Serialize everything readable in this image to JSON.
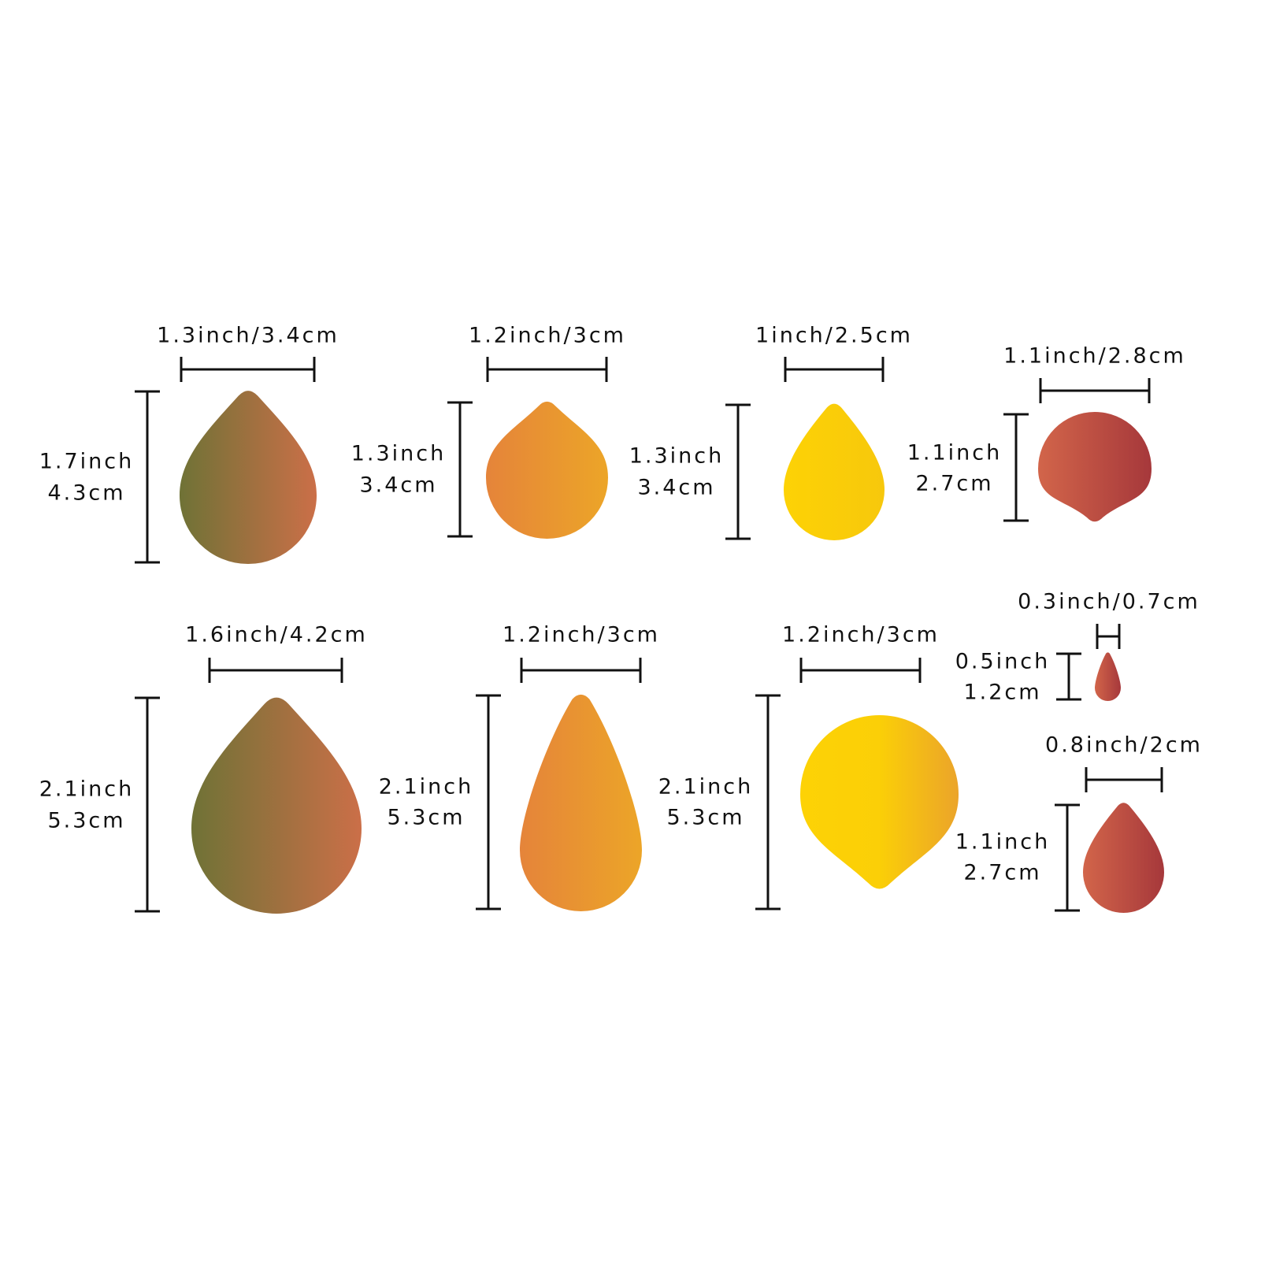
{
  "shapes": [
    {
      "width": "1.3inch/3.4cm",
      "height": [
        "1.7inch",
        "4.3cm"
      ]
    },
    {
      "width": "1.2inch/3cm",
      "height": [
        "1.3inch",
        "3.4cm"
      ]
    },
    {
      "width": "1inch/2.5cm",
      "height": [
        "1.3inch",
        "3.4cm"
      ]
    },
    {
      "width": "1.1inch/2.8cm",
      "height": [
        "1.1inch",
        "2.7cm"
      ]
    },
    {
      "width": "1.6inch/4.2cm",
      "height": [
        "2.1inch",
        "5.3cm"
      ]
    },
    {
      "width": "1.2inch/3cm",
      "height": [
        "2.1inch",
        "5.3cm"
      ]
    },
    {
      "width": "1.2inch/3cm",
      "height": [
        "2.1inch",
        "5.3cm"
      ]
    },
    {
      "width": "0.3inch/0.7cm",
      "height": [
        "0.5inch",
        "1.2cm"
      ]
    },
    {
      "width": "0.8inch/2cm",
      "height": [
        "1.1inch",
        "2.7cm"
      ]
    }
  ]
}
